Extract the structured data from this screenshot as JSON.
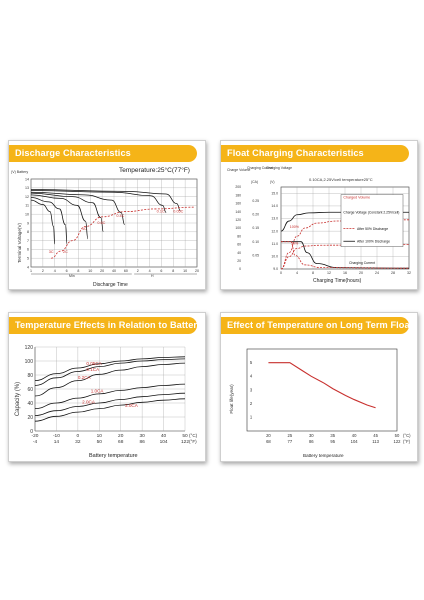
{
  "panels": [
    {
      "title": "Discharge Characteristics"
    },
    {
      "title": "Float Charging Characteristics"
    },
    {
      "title": "Temperature Effects in Relation to Battery Capacity"
    },
    {
      "title": "Effect of Temperature on Long Term Float Life"
    }
  ],
  "chart_data": [
    {
      "type": "line",
      "title": "Temperature:25°C(77°F)",
      "ylabel": "Terminal Voltage(V)",
      "ylabel_top": "(V) Battery",
      "xlabel": "Discharge Time",
      "x_unit_min": "Min",
      "x_unit_h": "H",
      "ylim": [
        4,
        14
      ],
      "yticks": [
        4,
        5,
        6,
        7,
        8,
        9,
        10,
        11,
        12,
        13,
        14
      ],
      "xticks": [
        "1",
        "2",
        "4",
        "6",
        "8",
        "10",
        "20",
        "40",
        "60",
        "2",
        "4",
        "6",
        "8",
        "10",
        "20"
      ],
      "series": [
        {
          "name": "3C",
          "points": [
            [
              0,
              11.6
            ],
            [
              1,
              11.1
            ],
            [
              1.6,
              10.3
            ],
            [
              1.9,
              8.6
            ],
            [
              2.0,
              6.6
            ]
          ]
        },
        {
          "name": "2C",
          "points": [
            [
              0,
              11.9
            ],
            [
              1.5,
              11.4
            ],
            [
              2.4,
              10.6
            ],
            [
              2.9,
              8.8
            ],
            [
              3.05,
              6.6
            ]
          ]
        },
        {
          "name": "1C",
          "points": [
            [
              0,
              12.2
            ],
            [
              2.5,
              11.8
            ],
            [
              3.9,
              11.0
            ],
            [
              4.6,
              9.2
            ],
            [
              4.8,
              7.2
            ]
          ]
        },
        {
          "name": "0.6C",
          "points": [
            [
              0,
              12.4
            ],
            [
              3.5,
              12.0
            ],
            [
              5.2,
              11.3
            ],
            [
              5.9,
              9.6
            ],
            [
              6.1,
              8.0
            ]
          ]
        },
        {
          "name": "0.4C",
          "points": [
            [
              0,
              12.5
            ],
            [
              4.5,
              12.2
            ],
            [
              6.8,
              11.6
            ],
            [
              7.6,
              10.2
            ],
            [
              7.9,
              8.8
            ]
          ]
        },
        {
          "name": "0.1C",
          "points": [
            [
              0,
              12.7
            ],
            [
              7,
              12.5
            ],
            [
              10.1,
              12.1
            ],
            [
              11.1,
              11.0
            ],
            [
              11.4,
              10.2
            ]
          ]
        },
        {
          "name": "0.05C",
          "points": [
            [
              0,
              12.8
            ],
            [
              8,
              12.6
            ],
            [
              11.4,
              12.3
            ],
            [
              12.3,
              11.2
            ],
            [
              12.6,
              10.4
            ]
          ]
        }
      ],
      "cutoff": {
        "name": "final voltage",
        "points": [
          [
            1.7,
            5.0
          ],
          [
            2.5,
            5.8
          ],
          [
            3.5,
            7.0
          ],
          [
            4.6,
            8.6
          ],
          [
            6,
            9.7
          ],
          [
            8,
            10.3
          ],
          [
            10.5,
            10.6
          ],
          [
            13.8,
            10.8
          ]
        ]
      },
      "labels": {
        "c3": "3C",
        "c2": "2C",
        "c1": "1C",
        "c06": "0.6C",
        "c04": "0.4C",
        "c01": "0.1C",
        "c005": "0.05C"
      }
    },
    {
      "type": "line",
      "title": "0.10CA,2.25V/cell  temperature25°C",
      "xlabel": "Charging Time(hours)",
      "col1": "Charge Volume",
      "col2": "Charging Current",
      "col3": "Charging Voltage",
      "col2_unit": "(CA)",
      "col3_unit": "(V)",
      "col1_ticks": [
        0,
        20,
        40,
        60,
        80,
        100,
        120,
        140,
        160,
        180,
        200
      ],
      "col2_ticks": [
        0.05,
        0.1,
        0.15,
        0.2,
        0.25
      ],
      "col3_ticks": [
        9.0,
        10.0,
        11.0,
        12.0,
        13.0,
        14.0,
        15.0
      ],
      "xticks": [
        0,
        4,
        8,
        12,
        16,
        20,
        24,
        28,
        32
      ],
      "legend": {
        "charged_volume": "Charged Volume",
        "charge_voltage": "Charge Voltage (Constant 2.25V/cell)",
        "after50": "After 50% Discharge",
        "after100": "After 100% Discharge",
        "charging_current": "Charging Current"
      },
      "annotations": {
        "p100": "100%",
        "p50": "50%",
        "cv": "Charged Volume"
      }
    },
    {
      "type": "line",
      "ylabel": "Capacity (%)",
      "xlabel": "Battery temperature",
      "ylim": [
        0,
        120
      ],
      "yticks": [
        0,
        20,
        40,
        60,
        80,
        100,
        120
      ],
      "xticks_c": [
        -20,
        -10,
        0,
        10,
        20,
        30,
        40,
        50
      ],
      "xticks_f": [
        -4,
        14,
        32,
        50,
        68,
        86,
        104,
        122
      ],
      "unit_c": "(°C)",
      "unit_f": "(°F)",
      "series": [
        {
          "name": "0.05CA",
          "x": [
            -20,
            -10,
            0,
            10,
            20,
            30,
            40,
            50
          ],
          "y": [
            72,
            82,
            90,
            96,
            100,
            103,
            105,
            106
          ]
        },
        {
          "name": "0.1CA",
          "x": [
            -20,
            -10,
            0,
            10,
            20,
            30,
            40,
            50
          ],
          "y": [
            65,
            76,
            85,
            92,
            97,
            100,
            102,
            103
          ]
        },
        {
          "name": "0.2CA",
          "x": [
            -20,
            -10,
            0,
            10,
            20,
            30,
            40,
            50
          ],
          "y": [
            50,
            62,
            72,
            81,
            87,
            92,
            95,
            97
          ]
        },
        {
          "name": "1.0CA",
          "x": [
            -20,
            -10,
            0,
            10,
            20,
            30,
            40,
            50
          ],
          "y": [
            32,
            40,
            47,
            53,
            58,
            62,
            65,
            67
          ]
        },
        {
          "name": "2.0CA",
          "x": [
            -20,
            -10,
            0,
            10,
            20,
            30,
            40,
            50
          ],
          "y": [
            22,
            29,
            35,
            40,
            45,
            49,
            52,
            54
          ]
        },
        {
          "name": "3.0CA",
          "x": [
            -20,
            -10,
            0,
            10,
            20,
            30,
            40,
            50
          ],
          "y": [
            14,
            21,
            27,
            32,
            37,
            41,
            44,
            46
          ]
        }
      ]
    },
    {
      "type": "line",
      "ylabel": "Float life(year)",
      "xlabel": "Battery temperature",
      "ylim": [
        0,
        6
      ],
      "yticks": [
        1,
        2,
        3,
        4,
        5
      ],
      "xticks_c": [
        20,
        25,
        30,
        35,
        40,
        45,
        50
      ],
      "xticks_f": [
        68,
        77,
        86,
        95,
        104,
        113,
        122
      ],
      "unit_c": "(°C)",
      "unit_f": "(°F)",
      "series": [
        {
          "name": "float life",
          "x": [
            20,
            22,
            25,
            28,
            30,
            33,
            35,
            38,
            40,
            43,
            45
          ],
          "y": [
            5,
            5,
            5,
            4.4,
            4.0,
            3.5,
            3.1,
            2.6,
            2.3,
            1.9,
            1.7
          ]
        }
      ]
    }
  ]
}
